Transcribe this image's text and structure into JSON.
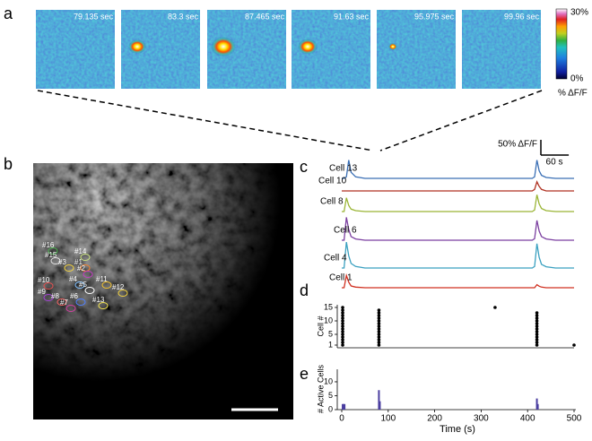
{
  "panel_a": {
    "label": "a",
    "times": [
      "79.135 sec",
      "83.3 sec",
      "87.465 sec",
      "91.63 sec",
      "95.975 sec",
      "99.96 sec"
    ],
    "colorbar": {
      "max_label": "30%",
      "min_label": "0%",
      "unit_label": "% ΔF/F"
    }
  },
  "panel_b": {
    "label": "b",
    "rois": [
      "#16",
      "#15",
      "#14",
      "#3",
      "#1",
      "#2",
      "#4",
      "#10",
      "#11",
      "#5",
      "#12",
      "#9",
      "#8",
      "#6",
      "#7",
      "#13"
    ]
  },
  "chart_data": [
    {
      "type": "line",
      "panel_label": "c",
      "scale_y": {
        "value": 50,
        "label": "50% ΔF/F"
      },
      "scale_x": {
        "value": 60,
        "label": "60 s"
      },
      "x": [
        0,
        5,
        10,
        15,
        20,
        30,
        50,
        100,
        150,
        200,
        250,
        300,
        350,
        400,
        410,
        415,
        420,
        425,
        430,
        440,
        460,
        500
      ],
      "series": [
        {
          "name": "Cell 13",
          "color": "#3a6fb5",
          "values": [
            0,
            0,
            5,
            60,
            20,
            5,
            0,
            0,
            0,
            0,
            0,
            0,
            0,
            0,
            0,
            5,
            60,
            25,
            10,
            3,
            0,
            0
          ]
        },
        {
          "name": "Cell 10",
          "color": "#b03222",
          "values": [
            0,
            0,
            0,
            0,
            0,
            0,
            0,
            0,
            0,
            0,
            0,
            0,
            0,
            0,
            0,
            5,
            30,
            15,
            5,
            0,
            0,
            0
          ]
        },
        {
          "name": "Cell 8",
          "color": "#9ab535",
          "values": [
            0,
            0,
            45,
            20,
            8,
            3,
            0,
            0,
            0,
            0,
            0,
            0,
            0,
            0,
            0,
            5,
            55,
            25,
            10,
            3,
            0,
            0
          ]
        },
        {
          "name": "Cell 6",
          "color": "#7b3fa0",
          "values": [
            0,
            0,
            75,
            35,
            12,
            4,
            0,
            0,
            0,
            0,
            0,
            0,
            0,
            0,
            0,
            5,
            65,
            30,
            12,
            4,
            0,
            0
          ]
        },
        {
          "name": "Cell 4",
          "color": "#3aa0c0",
          "values": [
            0,
            0,
            85,
            40,
            15,
            5,
            0,
            0,
            0,
            0,
            0,
            0,
            0,
            0,
            0,
            5,
            80,
            35,
            12,
            4,
            0,
            0
          ]
        },
        {
          "name": "Cell 1",
          "color": "#d03020",
          "values": [
            0,
            0,
            40,
            18,
            6,
            2,
            0,
            0,
            0,
            0,
            0,
            0,
            0,
            0,
            0,
            0,
            10,
            5,
            2,
            0,
            0,
            0
          ]
        }
      ]
    },
    {
      "type": "scatter",
      "panel_label": "d",
      "ylabel": "Cell #",
      "color": "#000000",
      "xlim": [
        0,
        500
      ],
      "ylim": [
        0,
        16
      ],
      "yticks": [
        1,
        5,
        10,
        15
      ],
      "x": [
        2,
        2,
        2,
        2,
        2,
        2,
        2,
        2,
        2,
        2,
        2,
        2,
        2,
        2,
        2,
        80,
        80,
        80,
        80,
        80,
        80,
        80,
        80,
        80,
        80,
        80,
        80,
        80,
        80,
        330,
        420,
        420,
        420,
        420,
        420,
        420,
        420,
        420,
        420,
        420,
        420,
        420,
        420,
        500
      ],
      "values": [
        1,
        2,
        3,
        4,
        5,
        6,
        7,
        8,
        9,
        10,
        11,
        12,
        13,
        14,
        15,
        1,
        2,
        3,
        4,
        5,
        6,
        7,
        8,
        9,
        10,
        11,
        12,
        13,
        14,
        15,
        1,
        2,
        3,
        4,
        5,
        6,
        7,
        8,
        9,
        10,
        11,
        12,
        13,
        1
      ]
    },
    {
      "type": "bar",
      "panel_label": "e",
      "ylabel": "# Active Cells",
      "xlabel": "Time (s)",
      "color": "#4a3ea0",
      "xlim": [
        0,
        500
      ],
      "ylim": [
        0,
        14.5
      ],
      "xticks": [
        0,
        100,
        200,
        300,
        400,
        500
      ],
      "yticks": [
        0,
        5,
        10
      ],
      "x": [
        2,
        4,
        6,
        80,
        82,
        420,
        422
      ],
      "values": [
        2,
        2,
        2,
        7,
        3,
        4,
        2
      ]
    }
  ]
}
